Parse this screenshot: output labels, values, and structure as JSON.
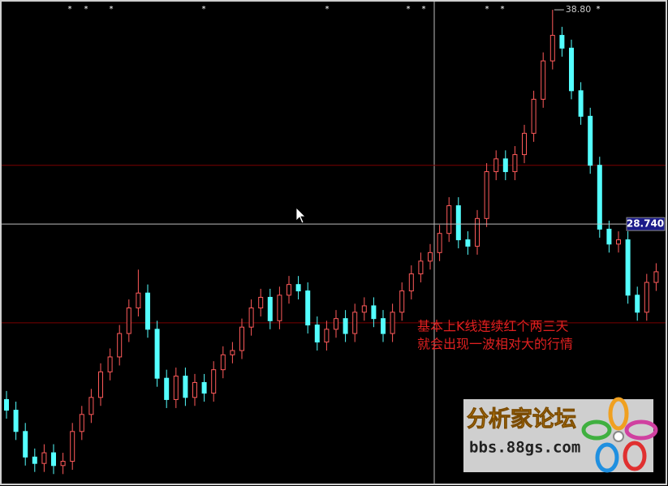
{
  "chart_data": {
    "type": "candlestick",
    "ylim": [
      16.44,
      39.26
    ],
    "up_color": "#ff5a5a",
    "down_color": "#54ffff",
    "open": [
      20.5,
      20.0,
      19.0,
      17.8,
      17.5,
      18.0,
      17.4,
      17.6,
      19.0,
      19.8,
      20.6,
      21.8,
      22.5,
      23.6,
      24.8,
      25.5,
      23.8,
      21.5,
      20.5,
      21.6,
      20.6,
      21.3,
      20.8,
      21.9,
      22.6,
      22.8,
      23.9,
      24.8,
      25.3,
      24.2,
      25.4,
      25.9,
      25.6,
      24.0,
      23.2,
      23.8,
      24.3,
      23.6,
      24.6,
      24.9,
      24.3,
      23.6,
      24.6,
      25.6,
      26.4,
      27.0,
      27.4,
      28.3,
      29.6,
      28.0,
      27.7,
      29.0,
      31.2,
      31.8,
      31.2,
      32.0,
      33.0,
      34.6,
      36.4,
      37.6,
      37.0,
      35.0,
      33.8,
      31.5,
      28.5,
      27.8,
      28.0,
      25.4,
      24.6,
      26.0
    ],
    "high": [
      20.9,
      20.4,
      19.4,
      18.2,
      18.4,
      18.4,
      18.0,
      19.4,
      20.2,
      21.0,
      22.2,
      22.9,
      24.0,
      25.2,
      26.6,
      25.9,
      24.2,
      21.9,
      22.0,
      22.0,
      21.7,
      21.7,
      22.3,
      23.0,
      23.2,
      24.3,
      25.2,
      25.7,
      25.7,
      25.8,
      26.3,
      26.3,
      26.0,
      24.4,
      24.2,
      24.7,
      24.7,
      25.0,
      25.3,
      25.3,
      24.7,
      25.0,
      26.0,
      26.8,
      27.4,
      27.8,
      28.7,
      30.0,
      30.0,
      28.4,
      29.4,
      31.6,
      32.2,
      32.2,
      32.4,
      33.4,
      35.0,
      36.8,
      38.8,
      38.0,
      37.4,
      35.4,
      34.2,
      31.9,
      28.9,
      28.4,
      28.4,
      25.8,
      26.4,
      26.9
    ],
    "low": [
      19.6,
      18.6,
      17.4,
      17.1,
      17.1,
      17.0,
      17.0,
      17.2,
      18.6,
      19.4,
      20.2,
      21.4,
      22.1,
      23.2,
      24.4,
      23.4,
      21.1,
      20.1,
      20.1,
      20.2,
      20.2,
      20.4,
      20.4,
      21.5,
      22.2,
      22.4,
      23.5,
      24.4,
      23.8,
      23.8,
      25.0,
      25.2,
      23.6,
      22.8,
      22.8,
      23.4,
      23.2,
      23.2,
      24.2,
      23.9,
      23.2,
      23.2,
      24.2,
      25.2,
      26.0,
      26.6,
      27.0,
      27.9,
      27.6,
      27.3,
      27.3,
      28.6,
      30.8,
      30.8,
      30.8,
      31.6,
      32.6,
      34.2,
      36.0,
      36.6,
      34.6,
      33.4,
      31.1,
      28.1,
      27.4,
      27.4,
      25.0,
      24.2,
      24.2,
      25.6
    ],
    "close": [
      20.0,
      19.0,
      17.8,
      17.5,
      18.0,
      17.4,
      17.6,
      19.0,
      19.8,
      20.6,
      21.8,
      22.5,
      23.6,
      24.8,
      25.5,
      23.8,
      21.5,
      20.5,
      21.6,
      20.6,
      21.3,
      20.8,
      21.9,
      22.6,
      22.8,
      23.9,
      24.8,
      25.3,
      24.2,
      25.4,
      25.9,
      25.6,
      24.0,
      23.2,
      23.8,
      24.3,
      23.6,
      24.6,
      24.9,
      24.3,
      23.6,
      24.6,
      25.6,
      26.4,
      27.0,
      27.4,
      28.3,
      29.6,
      28.0,
      27.7,
      29.0,
      31.2,
      31.8,
      31.2,
      32.0,
      33.0,
      34.6,
      36.4,
      37.6,
      37.0,
      35.0,
      33.8,
      31.5,
      28.5,
      27.8,
      28.0,
      25.4,
      24.6,
      26.0,
      26.5
    ],
    "hlines": [
      31.5,
      24.1
    ],
    "max_marker": {
      "value": 38.8,
      "label": "38.80"
    },
    "crosshair": {
      "value": 28.74,
      "label": "28.740"
    },
    "annotations": [
      "基本上K线连续红个两三天",
      "就会出现一波相对大的行情"
    ],
    "logo": {
      "title": "分析家论坛",
      "url": "bbs.88gs.com"
    }
  }
}
